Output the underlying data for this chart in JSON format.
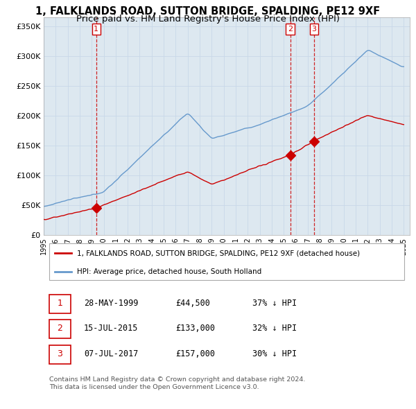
{
  "title": "1, FALKLANDS ROAD, SUTTON BRIDGE, SPALDING, PE12 9XF",
  "subtitle": "Price paid vs. HM Land Registry's House Price Index (HPI)",
  "title_fontsize": 10.5,
  "subtitle_fontsize": 9.5,
  "ylabel_ticks": [
    "£0",
    "£50K",
    "£100K",
    "£150K",
    "£200K",
    "£250K",
    "£300K",
    "£350K"
  ],
  "ytick_values": [
    0,
    50000,
    100000,
    150000,
    200000,
    250000,
    300000,
    350000
  ],
  "ylim": [
    0,
    365000
  ],
  "xlim_start": 1995.0,
  "xlim_end": 2025.5,
  "sale_dates": [
    1999.38,
    2015.54,
    2017.52
  ],
  "sale_prices": [
    44500,
    133000,
    157000
  ],
  "sale_labels": [
    "1",
    "2",
    "3"
  ],
  "red_line_color": "#cc0000",
  "blue_line_color": "#6699cc",
  "plot_bg_color": "#dde8f0",
  "sale_marker_color": "#cc0000",
  "dashed_line_color": "#cc0000",
  "legend_label_red": "1, FALKLANDS ROAD, SUTTON BRIDGE, SPALDING, PE12 9XF (detached house)",
  "legend_label_blue": "HPI: Average price, detached house, South Holland",
  "table_rows": [
    {
      "num": "1",
      "date": "28-MAY-1999",
      "price": "£44,500",
      "hpi": "37% ↓ HPI"
    },
    {
      "num": "2",
      "date": "15-JUL-2015",
      "price": "£133,000",
      "hpi": "32% ↓ HPI"
    },
    {
      "num": "3",
      "date": "07-JUL-2017",
      "price": "£157,000",
      "hpi": "30% ↓ HPI"
    }
  ],
  "footer": "Contains HM Land Registry data © Crown copyright and database right 2024.\nThis data is licensed under the Open Government Licence v3.0.",
  "background_color": "#ffffff",
  "grid_color": "#c8d8e8"
}
